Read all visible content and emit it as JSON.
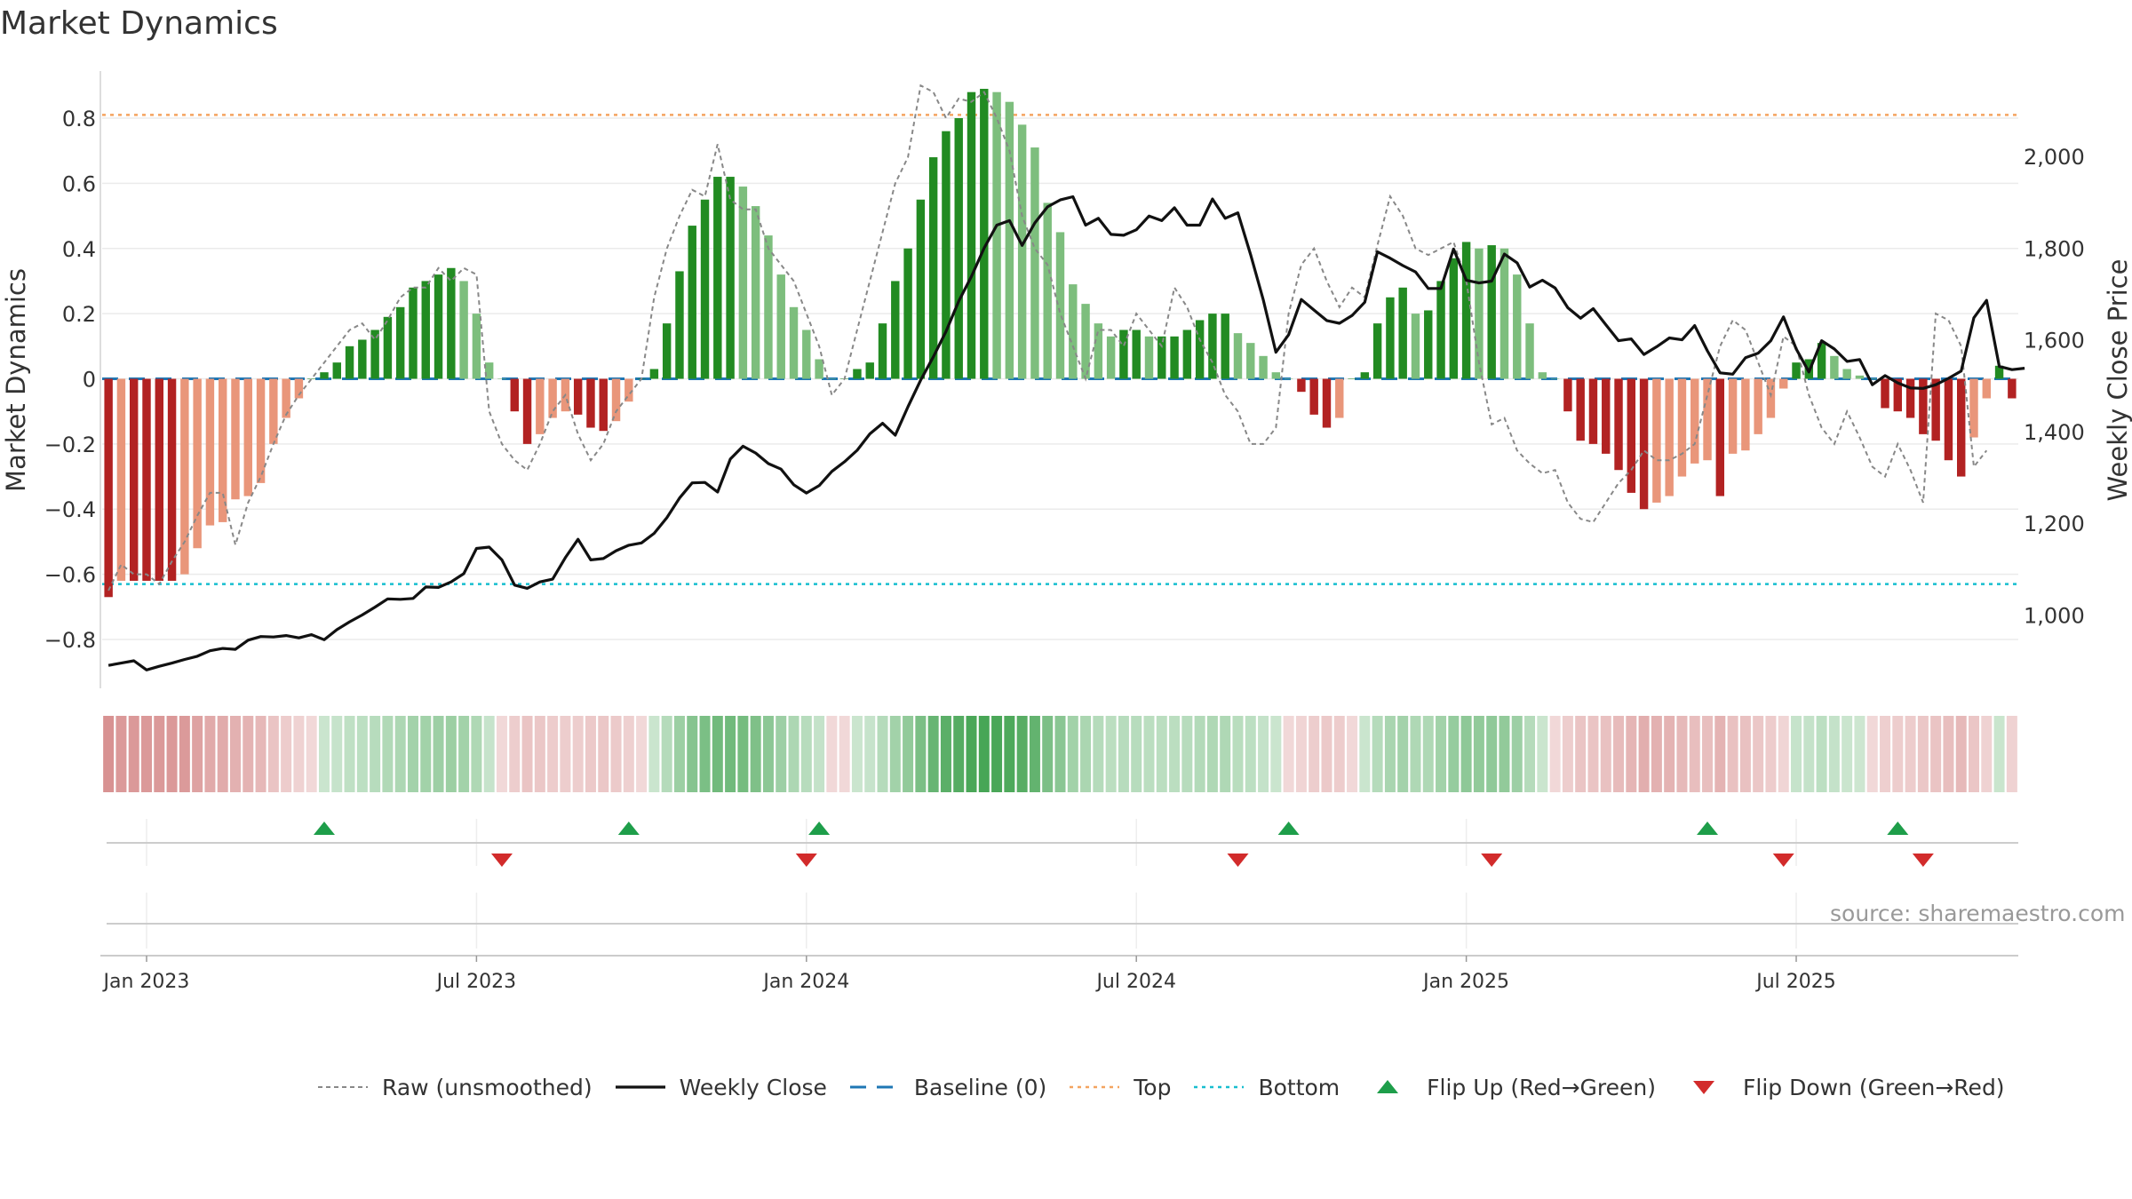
{
  "title": "Market Dynamics",
  "watermark": "source: sharemaestro.com",
  "legend": [
    {
      "key": "raw",
      "label": "Raw (unsmoothed)"
    },
    {
      "key": "close",
      "label": "Weekly Close"
    },
    {
      "key": "baseline",
      "label": "Baseline (0)"
    },
    {
      "key": "top",
      "label": "Top"
    },
    {
      "key": "bottom",
      "label": "Bottom"
    },
    {
      "key": "flip_up",
      "label": "Flip Up (Red→Green)"
    },
    {
      "key": "flip_down",
      "label": "Flip Down (Green→Red)"
    }
  ],
  "chart_data": {
    "type": "bar",
    "ylabel": "Market Dynamics",
    "y2label": "Weekly Close Price",
    "ylim": [
      -0.95,
      0.95
    ],
    "y2lim": [
      840,
      2190
    ],
    "yticks": [
      -0.8,
      -0.6,
      -0.4,
      -0.2,
      0,
      0.2,
      0.4,
      0.6,
      0.8
    ],
    "ytick_labels": [
      "−0.8",
      "−0.6",
      "−0.4",
      "−0.2",
      "0",
      "0.2",
      "0.4",
      "0.6",
      "0.8"
    ],
    "y2ticks": [
      1000,
      1200,
      1400,
      1600,
      1800,
      2000
    ],
    "y2tick_labels": [
      "1,000",
      "1,200",
      "1,400",
      "1,600",
      "1,800",
      "2,000"
    ],
    "xticks": [
      {
        "week": 3,
        "label": "Jan 2023"
      },
      {
        "week": 29,
        "label": "Jul 2023"
      },
      {
        "week": 55,
        "label": "Jan 2024"
      },
      {
        "week": 81,
        "label": "Jul 2024"
      },
      {
        "week": 107,
        "label": "Jan 2025"
      },
      {
        "week": 133,
        "label": "Jul 2025"
      }
    ],
    "top_level": 0.81,
    "bottom_level": -0.63,
    "baseline": 0,
    "colors": {
      "strong_green": "#228b22",
      "light_green": "#7dbe7d",
      "strong_red": "#b22222",
      "light_red": "#e9967a",
      "close": "#111111",
      "raw": "#888888",
      "baseline": "#1f77b4",
      "top": "#f4a460",
      "bottom": "#17becf",
      "flip_up": "#1e9e4a",
      "flip_down": "#d22b2b"
    },
    "weekly_values": [
      -0.67,
      -0.62,
      -0.62,
      -0.62,
      -0.62,
      -0.62,
      -0.6,
      -0.52,
      -0.45,
      -0.44,
      -0.37,
      -0.36,
      -0.32,
      -0.2,
      -0.12,
      -0.06,
      0,
      0.02,
      0.05,
      0.1,
      0.12,
      0.15,
      0.19,
      0.22,
      0.28,
      0.3,
      0.32,
      0.34,
      0.3,
      0.2,
      0.05,
      0,
      -0.1,
      -0.2,
      -0.17,
      -0.12,
      -0.1,
      -0.11,
      -0.15,
      -0.16,
      -0.13,
      -0.07,
      0,
      0.03,
      0.17,
      0.33,
      0.47,
      0.55,
      0.62,
      0.62,
      0.59,
      0.53,
      0.44,
      0.32,
      0.22,
      0.15,
      0.06,
      0,
      0,
      0.03,
      0.05,
      0.17,
      0.3,
      0.4,
      0.55,
      0.68,
      0.76,
      0.8,
      0.88,
      0.89,
      0.88,
      0.85,
      0.78,
      0.71,
      0.54,
      0.45,
      0.29,
      0.23,
      0.17,
      0.13,
      0.15,
      0.15,
      0.13,
      0.13,
      0.13,
      0.15,
      0.18,
      0.2,
      0.2,
      0.14,
      0.11,
      0.07,
      0.02,
      0,
      -0.04,
      -0.11,
      -0.15,
      -0.12,
      0,
      0.02,
      0.17,
      0.25,
      0.28,
      0.2,
      0.21,
      0.3,
      0.37,
      0.42,
      0.4,
      0.41,
      0.4,
      0.32,
      0.17,
      0.02,
      0,
      -0.1,
      -0.19,
      -0.2,
      -0.23,
      -0.28,
      -0.35,
      -0.4,
      -0.38,
      -0.36,
      -0.3,
      -0.26,
      -0.25,
      -0.36,
      -0.23,
      -0.22,
      -0.17,
      -0.12,
      -0.03,
      0.05,
      0.06,
      0.11,
      0.07,
      0.03,
      0.01,
      0,
      -0.09,
      -0.1,
      -0.12,
      -0.17,
      -0.19,
      -0.25,
      -0.3,
      -0.18,
      -0.06,
      0.04,
      -0.06
    ],
    "weekly_close": [
      890,
      895,
      900,
      880,
      888,
      895,
      903,
      910,
      922,
      927,
      925,
      945,
      953,
      952,
      955,
      950,
      957,
      946,
      968,
      985,
      1000,
      1017,
      1035,
      1034,
      1036,
      1061,
      1060,
      1072,
      1090,
      1145,
      1148,
      1120,
      1065,
      1058,
      1072,
      1078,
      1125,
      1165,
      1120,
      1123,
      1140,
      1152,
      1157,
      1178,
      1212,
      1255,
      1288,
      1289,
      1268,
      1340,
      1368,
      1353,
      1330,
      1318,
      1284,
      1266,
      1282,
      1313,
      1334,
      1359,
      1395,
      1418,
      1392,
      1454,
      1512,
      1563,
      1618,
      1684,
      1738,
      1800,
      1850,
      1860,
      1806,
      1855,
      1890,
      1905,
      1912,
      1850,
      1865,
      1830,
      1828,
      1840,
      1870,
      1860,
      1888,
      1850,
      1850,
      1907,
      1865,
      1877,
      1786,
      1687,
      1573,
      1611,
      1688,
      1665,
      1642,
      1636,
      1653,
      1682,
      1792,
      1778,
      1762,
      1748,
      1712,
      1712,
      1798,
      1730,
      1724,
      1728,
      1787,
      1768,
      1715,
      1730,
      1713,
      1670,
      1647,
      1668,
      1633,
      1598,
      1602,
      1568,
      1585,
      1604,
      1600,
      1631,
      1576,
      1528,
      1525,
      1561,
      1571,
      1598,
      1650,
      1580,
      1530,
      1598,
      1580,
      1553,
      1557,
      1502,
      1522,
      1506,
      1495,
      1494,
      1502,
      1516,
      1532,
      1648,
      1686,
      1542,
      1535,
      1538
    ],
    "weekly_raw": [
      -0.65,
      -0.57,
      -0.6,
      -0.6,
      -0.63,
      -0.56,
      -0.5,
      -0.42,
      -0.35,
      -0.35,
      -0.51,
      -0.38,
      -0.3,
      -0.2,
      -0.11,
      -0.05,
      0,
      0.05,
      0.1,
      0.15,
      0.17,
      0.12,
      0.18,
      0.25,
      0.28,
      0.28,
      0.34,
      0.3,
      0.34,
      0.32,
      -0.1,
      -0.2,
      -0.25,
      -0.28,
      -0.2,
      -0.1,
      -0.05,
      -0.17,
      -0.25,
      -0.2,
      -0.1,
      -0.05,
      0,
      0.25,
      0.4,
      0.5,
      0.58,
      0.56,
      0.72,
      0.55,
      0.52,
      0.52,
      0.4,
      0.35,
      0.3,
      0.2,
      0.1,
      -0.05,
      0,
      0.15,
      0.3,
      0.45,
      0.6,
      0.68,
      0.9,
      0.88,
      0.8,
      0.86,
      0.85,
      0.88,
      0.8,
      0.7,
      0.5,
      0.4,
      0.35,
      0.2,
      0.1,
      0,
      0.15,
      0.15,
      0.1,
      0.2,
      0.15,
      0.1,
      0.28,
      0.22,
      0.12,
      0.05,
      -0.05,
      -0.1,
      -0.2,
      -0.2,
      -0.15,
      0.2,
      0.35,
      0.4,
      0.3,
      0.22,
      0.28,
      0.25,
      0.41,
      0.56,
      0.5,
      0.4,
      0.38,
      0.4,
      0.42,
      0.3,
      0.05,
      -0.14,
      -0.12,
      -0.22,
      -0.26,
      -0.29,
      -0.28,
      -0.38,
      -0.43,
      -0.44,
      -0.38,
      -0.32,
      -0.28,
      -0.22,
      -0.25,
      -0.25,
      -0.23,
      -0.2,
      -0.05,
      0.1,
      0.18,
      0.15,
      0.05,
      -0.05,
      0.13,
      0.1,
      -0.05,
      -0.15,
      -0.2,
      -0.1,
      -0.18,
      -0.27,
      -0.3,
      -0.2,
      -0.28,
      -0.38,
      0.2,
      0.18,
      0.1,
      -0.27,
      -0.22
    ],
    "flip_up_weeks": [
      17,
      41,
      56,
      93,
      126,
      141
    ],
    "flip_down_weeks": [
      31,
      55,
      89,
      109,
      132,
      143
    ],
    "regime_strip": "strip coloring follows the weekly_values sign and magnitude"
  }
}
